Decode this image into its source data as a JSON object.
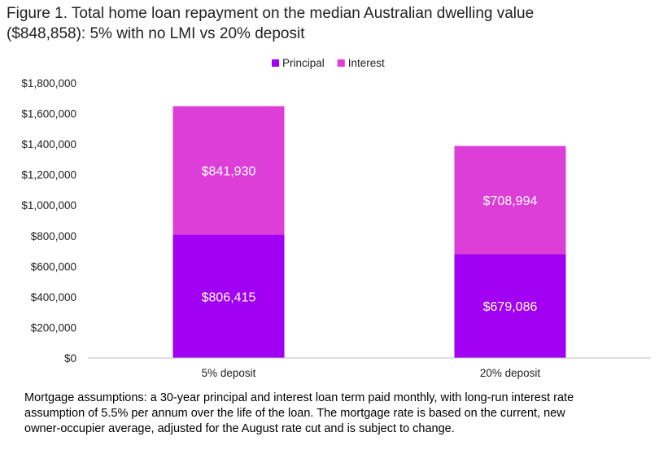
{
  "title_line1": "Figure 1. Total home loan repayment on the median Australian dwelling value",
  "title_line2": "($848,858): 5% with no LMI vs 20% deposit",
  "footnote_line1": "Mortgage assumptions: a 30-year principal and interest loan term paid monthly, with long-run interest rate",
  "footnote_line2": "assumption of 5.5% per annum over the life of the loan. The mortgage rate is based on the current, new",
  "footnote_line3": "owner-occupier average, adjusted for the August rate cut and is subject to change.",
  "chart_data": {
    "type": "bar",
    "stacked": true,
    "categories": [
      "5% deposit",
      "20% deposit"
    ],
    "series": [
      {
        "name": "Principal",
        "values": [
          806415,
          679086
        ],
        "color": "#a100f2",
        "labels": [
          "$806,415",
          "$679,086"
        ]
      },
      {
        "name": "Interest",
        "values": [
          841930,
          708994
        ],
        "color": "#dd3ed8",
        "labels": [
          "$841,930",
          "$708,994"
        ]
      }
    ],
    "ylim": [
      0,
      1800000
    ],
    "yticks": [
      0,
      200000,
      400000,
      600000,
      800000,
      1000000,
      1200000,
      1400000,
      1600000,
      1800000
    ],
    "ytick_labels": [
      "$0",
      "$200,000",
      "$400,000",
      "$600,000",
      "$800,000",
      "$1,000,000",
      "$1,200,000",
      "$1,400,000",
      "$1,600,000",
      "$1,800,000"
    ],
    "legend_position": "top",
    "grid": false
  }
}
